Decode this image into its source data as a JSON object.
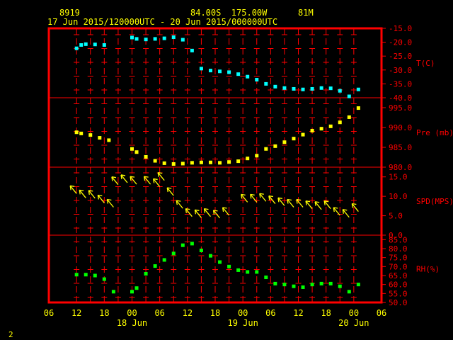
{
  "header": {
    "station_id": "8919",
    "position": "84.00S  175.00W",
    "elevation": "81M",
    "time_range": "17 Jun 2015/120000UTC - 20 Jun 2015/000000UTC"
  },
  "corner_label": "2",
  "colors": {
    "background": "#000000",
    "frame": "#ff0000",
    "grid": "#ff0000",
    "text": "#ffff00",
    "axis_labels": "#ff0000",
    "temperature": "#00ffff",
    "pressure": "#ffff00",
    "wind": "#ffff00",
    "humidity": "#00ff00"
  },
  "chart_data": {
    "type": "scatter",
    "x_axis": {
      "unit": "hours since 17 Jun 2015 00UTC",
      "range": [
        6,
        78
      ],
      "tick_labels": [
        "06",
        "12",
        "18",
        "00",
        "06",
        "12",
        "18",
        "00",
        "06",
        "12",
        "18",
        "00",
        "06"
      ],
      "tick_hours": [
        6,
        12,
        18,
        24,
        30,
        36,
        42,
        48,
        54,
        60,
        66,
        72,
        78
      ],
      "day_labels": [
        {
          "text": "18 Jun",
          "hour": 24
        },
        {
          "text": "19 Jun",
          "hour": 48
        },
        {
          "text": "20 Jun",
          "hour": 72
        }
      ]
    },
    "panels": [
      {
        "key": "temp",
        "label": "T(C)",
        "ylim": [
          -40,
          -15
        ],
        "ticks": [
          "-15.0",
          "-20.0",
          "-25.0",
          "-30.0",
          "-35.0",
          "-40.0"
        ],
        "tick_values": [
          -15,
          -20,
          -25,
          -30,
          -35,
          -40
        ],
        "color_key": "temperature",
        "x": [
          12,
          13,
          14,
          16,
          18,
          24,
          25,
          27,
          29,
          31,
          33,
          35,
          37,
          39,
          41,
          43,
          45,
          47,
          49,
          51,
          53,
          55,
          57,
          59,
          61,
          63,
          65,
          67,
          69,
          71,
          73
        ],
        "values": [
          -22.2,
          -21,
          -20.7,
          -20.8,
          -21,
          -18.3,
          -18.8,
          -19,
          -18.8,
          -18.6,
          -18.2,
          -19.1,
          -23,
          -29.5,
          -30.2,
          -30.5,
          -30.8,
          -31.5,
          -32.4,
          -33.5,
          -35,
          -36,
          -36.5,
          -36.8,
          -37,
          -36.8,
          -36.5,
          -36.6,
          -37.5,
          -39.5,
          -37
        ]
      },
      {
        "key": "pres",
        "label": "Pre (mb)",
        "ylim": [
          980,
          997.5
        ],
        "ticks": [
          "995.0",
          "990.0",
          "985.0",
          "980.0"
        ],
        "tick_values": [
          995,
          990,
          985,
          980
        ],
        "color_key": "pressure",
        "x": [
          12,
          13,
          15,
          17,
          19,
          24,
          25,
          27,
          29,
          31,
          33,
          35,
          37,
          39,
          41,
          43,
          45,
          47,
          49,
          51,
          53,
          55,
          57,
          59,
          61,
          63,
          65,
          67,
          69,
          71,
          73
        ],
        "values": [
          988.8,
          988.5,
          988.1,
          987.4,
          986.8,
          984.6,
          983.8,
          982.6,
          981.6,
          981,
          980.8,
          980.9,
          981.1,
          981.2,
          981.2,
          981.1,
          981.3,
          981.5,
          982.2,
          982.9,
          984.6,
          985.3,
          986.3,
          987.2,
          988.2,
          989.2,
          989.7,
          990.3,
          991.3,
          992.6,
          994.9
        ]
      },
      {
        "key": "wind",
        "label": "SPD(MPS)",
        "ylim": [
          0,
          17.5
        ],
        "ticks": [
          "15.0",
          "10.0",
          "5.0",
          "0.0"
        ],
        "tick_values": [
          15,
          10,
          5,
          0
        ],
        "color_key": "wind",
        "x": [
          12,
          14,
          16,
          18,
          20,
          21,
          23,
          25,
          28,
          30,
          31,
          33,
          35,
          37,
          39,
          41,
          43,
          45,
          49,
          51,
          53,
          55,
          57,
          59,
          61,
          63,
          65,
          67,
          69,
          71,
          73
        ],
        "values": [
          10.7,
          9.6,
          9.5,
          8.3,
          7.2,
          13,
          13.5,
          13.1,
          13.1,
          12.5,
          14.1,
          10.2,
          6.9,
          4.8,
          4.5,
          4.8,
          4.4,
          5.1,
          8.5,
          8.5,
          8.7,
          8.1,
          7.6,
          7.2,
          7.2,
          6.8,
          6.6,
          6.8,
          5.1,
          4.6,
          6.1
        ]
      },
      {
        "key": "rh",
        "label": "RH(%)",
        "ylim": [
          50,
          87.5
        ],
        "ticks": [
          "85.0",
          "80.0",
          "75.0",
          "70.0",
          "65.0",
          "60.0",
          "55.0",
          "50.0"
        ],
        "tick_values": [
          85,
          80,
          75,
          70,
          65,
          60,
          55,
          50
        ],
        "color_key": "humidity",
        "x": [
          12,
          14,
          16,
          18,
          20,
          24,
          25,
          27,
          29,
          31,
          33,
          35,
          37,
          39,
          41,
          43,
          45,
          47,
          49,
          51,
          53,
          55,
          57,
          59,
          61,
          63,
          65,
          67,
          69,
          71,
          73
        ],
        "values": [
          65.5,
          65.5,
          65,
          63,
          56,
          56,
          58,
          66,
          70.3,
          73.7,
          77.3,
          81.9,
          82.8,
          79,
          76,
          72.5,
          70,
          68,
          67,
          67,
          64,
          60.5,
          60,
          59,
          58.5,
          60,
          60.5,
          60.5,
          59,
          56,
          60
        ]
      }
    ]
  }
}
